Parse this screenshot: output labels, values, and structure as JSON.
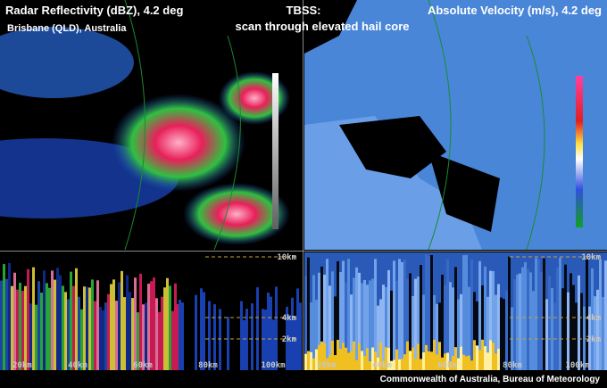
{
  "header": {
    "left_title": "Radar Reflectivity (dBZ), 4.2 deg",
    "left_subtitle": "Brisbane (QLD), Australia",
    "center_title": "TBSS:",
    "center_subtitle": "scan through elevated hail core",
    "right_title": "Absolute Velocity (m/s), 4.2 deg"
  },
  "panels": {
    "left": {
      "range_labels": [
        "20km",
        "40km",
        "60km",
        "80km",
        "100km"
      ],
      "height_labels": [
        "10km",
        "4km",
        "2km"
      ]
    },
    "right": {
      "range_labels": [
        "20km",
        "40km",
        "60km",
        "80km",
        "100km"
      ],
      "height_labels": [
        "10km",
        "4km",
        "2km"
      ]
    }
  },
  "footer": {
    "credit": "Commonwealth of Australia, Bureau of Meteorology"
  }
}
